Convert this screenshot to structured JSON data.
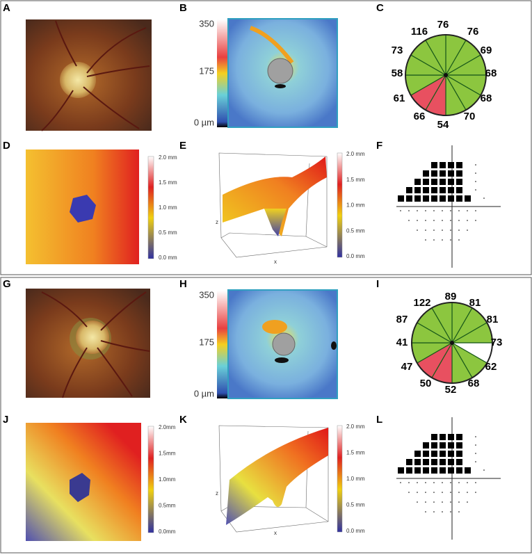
{
  "panel_labels": [
    "A",
    "B",
    "C",
    "D",
    "E",
    "F",
    "G",
    "H",
    "I",
    "J",
    "K",
    "L"
  ],
  "top": {
    "thickness_scale": [
      "350",
      "175",
      "0 µm"
    ],
    "sectors": [
      "116",
      "76",
      "76",
      "73",
      "69",
      "58",
      "68",
      "61",
      "68",
      "66",
      "54",
      "70"
    ],
    "depth_scale_d": [
      "2.0 mm",
      "1.5 mm",
      "1.0 mm",
      "0.5 mm",
      "0.0 mm"
    ],
    "depth_scale_e": [
      "2.0 mm",
      "1.5 mm",
      "1.0 mm",
      "0.5 mm",
      "0.0 mm"
    ],
    "axis_z": "z",
    "axis_x": "x"
  },
  "bottom": {
    "thickness_scale": [
      "350",
      "175",
      "0 µm"
    ],
    "sectors": [
      "122",
      "89",
      "81",
      "87",
      "81",
      "41",
      "73",
      "47",
      "62",
      "50",
      "52",
      "68"
    ],
    "depth_scale_j": [
      "2.0mm",
      "1.5mm",
      "1.0mm",
      "0.5mm",
      "0.0mm"
    ],
    "depth_scale_k": [
      "2.0 mm",
      "1.5 mm",
      "1.0 mm",
      "0.5 mm",
      "0.0 mm"
    ],
    "axis_z": "z",
    "axis_x": "x"
  }
}
